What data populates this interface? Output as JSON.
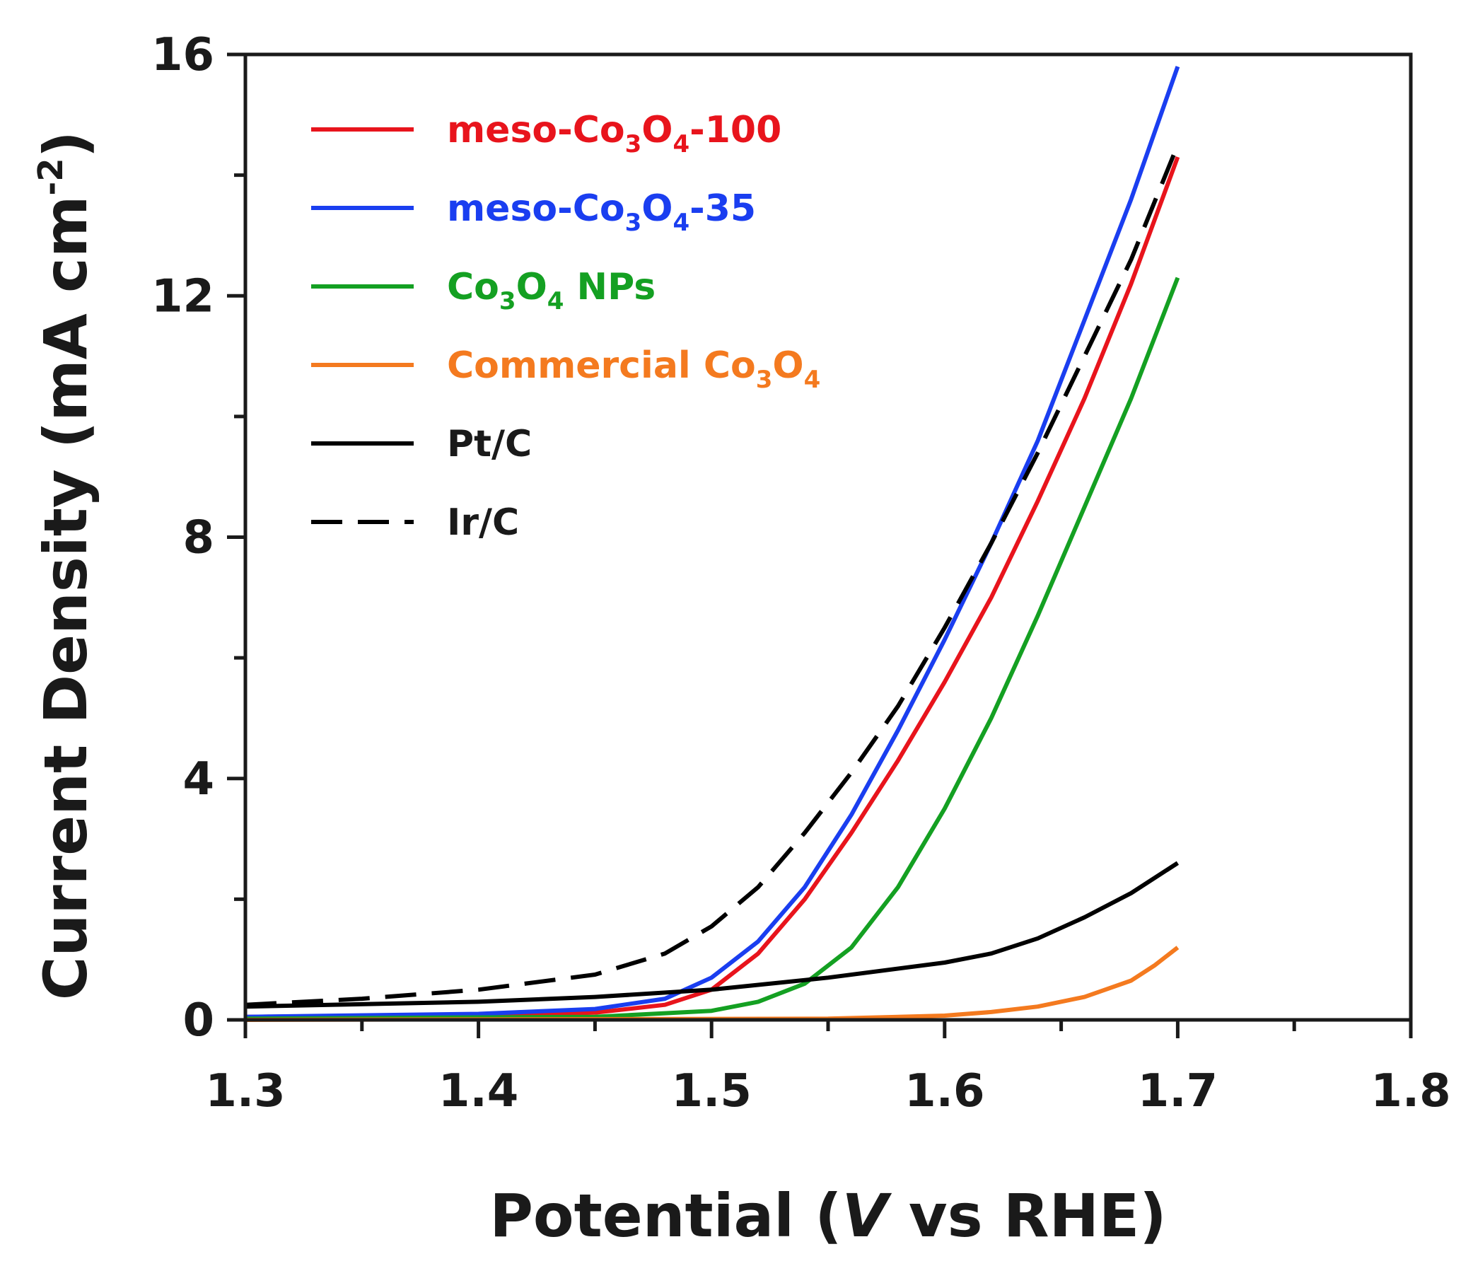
{
  "chart_data": {
    "type": "line",
    "title": "",
    "xlabel_parts": [
      "Potential (",
      "V",
      " vs RHE)"
    ],
    "ylabel_parts": [
      "Current Density (mA cm",
      "-2",
      ")"
    ],
    "xlim": [
      1.3,
      1.8
    ],
    "ylim": [
      0,
      16
    ],
    "x_ticks": [
      1.3,
      1.4,
      1.5,
      1.6,
      1.7,
      1.8
    ],
    "x_tick_labels": [
      "1.3",
      "1.4",
      "1.5",
      "1.6",
      "1.7",
      "1.8"
    ],
    "y_ticks": [
      0,
      4,
      8,
      12,
      16
    ],
    "y_tick_labels": [
      "0",
      "4",
      "8",
      "12",
      "16"
    ],
    "grid": false,
    "legend_position": "top-left",
    "series": [
      {
        "name": "meso-Co3O4-100",
        "legend_parts": [
          {
            "t": "meso-Co"
          },
          {
            "t": "3",
            "sub": true
          },
          {
            "t": "O"
          },
          {
            "t": "4",
            "sub": true
          },
          {
            "t": "-100"
          }
        ],
        "color": "#e8141c",
        "dash": "solid",
        "x": [
          1.3,
          1.4,
          1.45,
          1.48,
          1.5,
          1.52,
          1.54,
          1.56,
          1.58,
          1.6,
          1.62,
          1.64,
          1.66,
          1.68,
          1.7
        ],
        "y": [
          0.05,
          0.08,
          0.12,
          0.25,
          0.5,
          1.1,
          2.0,
          3.1,
          4.3,
          5.6,
          7.0,
          8.6,
          10.3,
          12.2,
          14.3
        ]
      },
      {
        "name": "meso-Co3O4-35",
        "legend_parts": [
          {
            "t": "meso-Co"
          },
          {
            "t": "3",
            "sub": true
          },
          {
            "t": "O"
          },
          {
            "t": "4",
            "sub": true
          },
          {
            "t": "-35"
          }
        ],
        "color": "#1a3ef0",
        "dash": "solid",
        "x": [
          1.3,
          1.4,
          1.45,
          1.48,
          1.5,
          1.52,
          1.54,
          1.56,
          1.58,
          1.6,
          1.62,
          1.64,
          1.66,
          1.68,
          1.7
        ],
        "y": [
          0.05,
          0.1,
          0.18,
          0.35,
          0.7,
          1.3,
          2.2,
          3.4,
          4.8,
          6.3,
          7.9,
          9.6,
          11.6,
          13.6,
          15.8
        ]
      },
      {
        "name": "Co3O4 NPs",
        "legend_parts": [
          {
            "t": "Co"
          },
          {
            "t": "3",
            "sub": true
          },
          {
            "t": "O"
          },
          {
            "t": "4",
            "sub": true
          },
          {
            "t": " NPs"
          }
        ],
        "color": "#14a022",
        "dash": "solid",
        "x": [
          1.3,
          1.45,
          1.5,
          1.52,
          1.54,
          1.56,
          1.58,
          1.6,
          1.62,
          1.64,
          1.66,
          1.68,
          1.7
        ],
        "y": [
          0.02,
          0.05,
          0.15,
          0.3,
          0.6,
          1.2,
          2.2,
          3.5,
          5.0,
          6.7,
          8.5,
          10.3,
          12.3
        ]
      },
      {
        "name": "Commercial Co3O4",
        "legend_parts": [
          {
            "t": "Commercial Co"
          },
          {
            "t": "3",
            "sub": true
          },
          {
            "t": "O"
          },
          {
            "t": "4",
            "sub": true
          }
        ],
        "color": "#f47a1f",
        "dash": "solid",
        "x": [
          1.3,
          1.55,
          1.6,
          1.62,
          1.64,
          1.66,
          1.68,
          1.69,
          1.7
        ],
        "y": [
          0.0,
          0.02,
          0.07,
          0.13,
          0.22,
          0.38,
          0.65,
          0.9,
          1.2
        ]
      },
      {
        "name": "Pt/C",
        "legend_parts": [
          {
            "t": "Pt/C"
          }
        ],
        "color": "#000000",
        "dash": "solid",
        "x": [
          1.3,
          1.4,
          1.45,
          1.5,
          1.55,
          1.6,
          1.62,
          1.64,
          1.66,
          1.68,
          1.7
        ],
        "y": [
          0.22,
          0.3,
          0.38,
          0.5,
          0.7,
          0.95,
          1.1,
          1.35,
          1.7,
          2.1,
          2.6
        ]
      },
      {
        "name": "Ir/C",
        "legend_parts": [
          {
            "t": "Ir/C"
          }
        ],
        "color": "#000000",
        "dash": "dashed",
        "x": [
          1.3,
          1.35,
          1.4,
          1.45,
          1.48,
          1.5,
          1.52,
          1.54,
          1.56,
          1.58,
          1.6,
          1.62,
          1.64,
          1.66,
          1.68,
          1.7
        ],
        "y": [
          0.25,
          0.35,
          0.5,
          0.75,
          1.1,
          1.55,
          2.2,
          3.1,
          4.1,
          5.2,
          6.5,
          7.9,
          9.4,
          11.0,
          12.6,
          14.5
        ]
      }
    ]
  }
}
